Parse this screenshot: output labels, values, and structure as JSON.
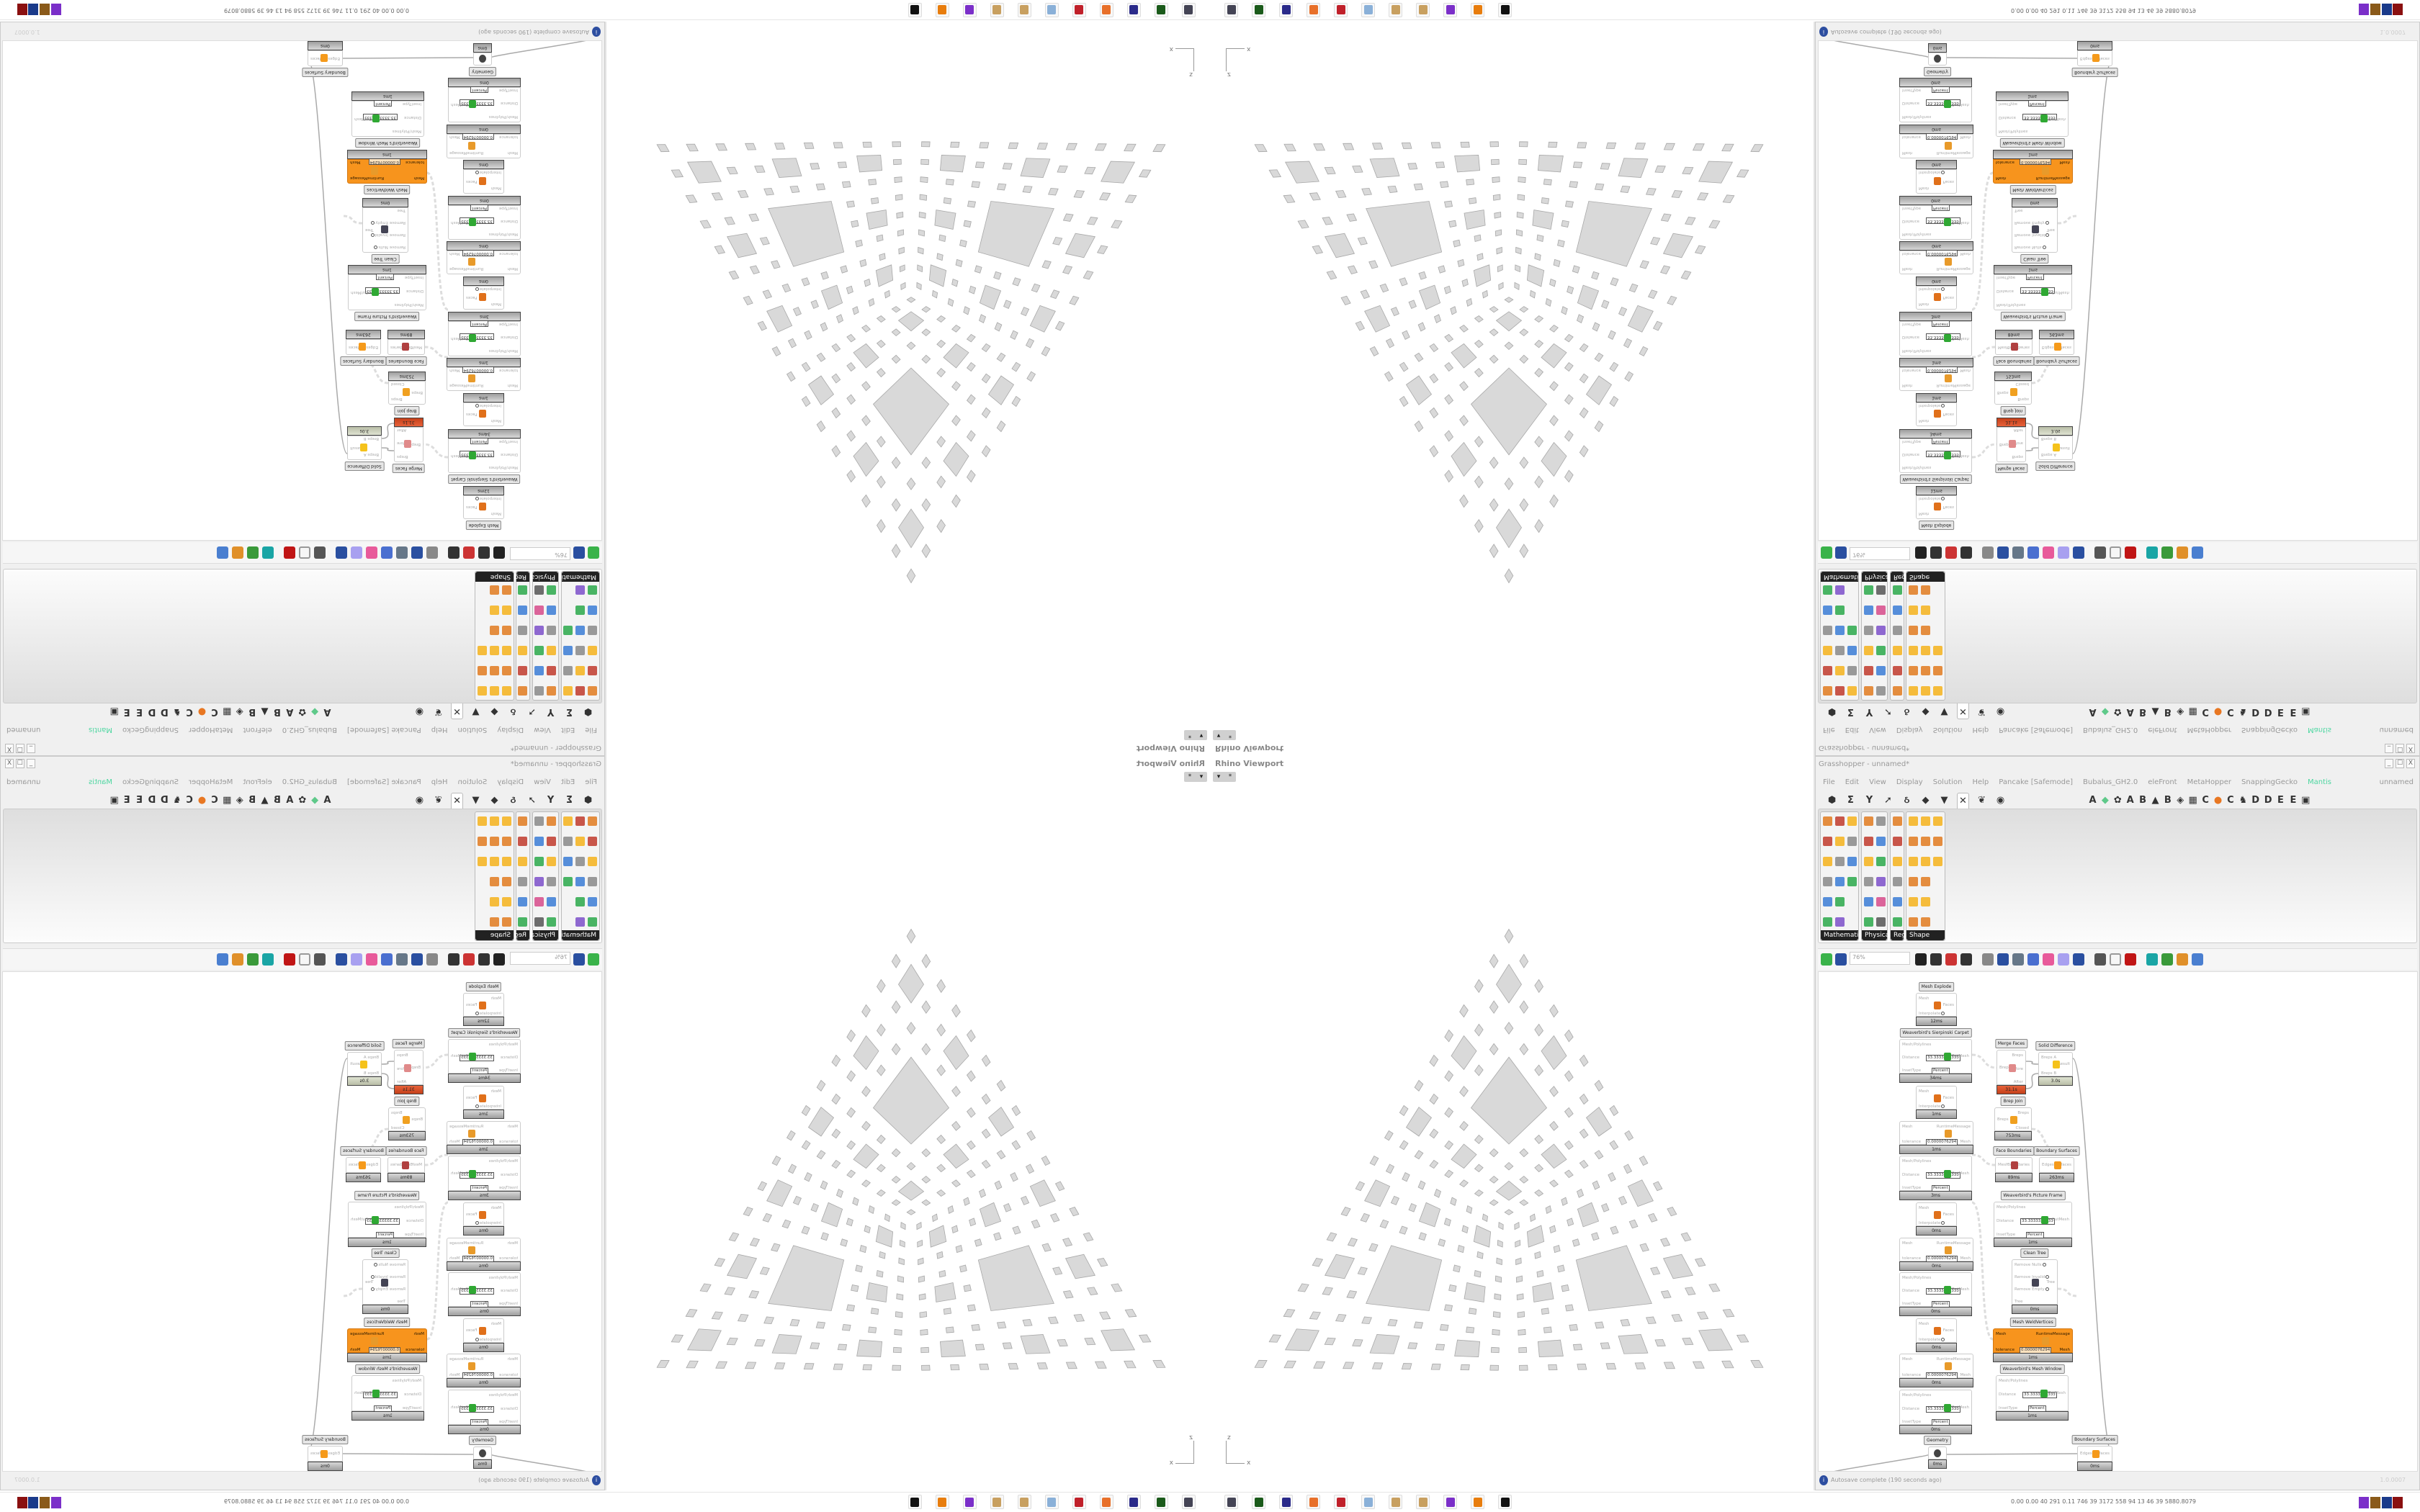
{
  "viewport": {
    "title": "Rhino Viewport",
    "menu_glyph": "▾",
    "pin_glyph": "*",
    "axes": {
      "z": "z",
      "x": "x"
    }
  },
  "gh": {
    "title": "Grasshopper - unnamed*",
    "window_buttons": [
      "_",
      "☐",
      "X"
    ],
    "menu": [
      "File",
      "Edit",
      "View",
      "Display",
      "Solution",
      "Help",
      "Pancake [Safemode]",
      "Bubalus_GH2.0",
      "eleFront",
      "MetaHopper",
      "SnappingGecko",
      "Mantis"
    ],
    "document_name": "unnamed",
    "tabs_left": [
      "⬢",
      "Σ",
      "Y",
      "➚",
      "ઠ",
      "◆",
      "▼",
      "✕",
      "❦",
      "◉"
    ],
    "selected_tab_index": 7,
    "tabs_right": [
      "A",
      "◆",
      "✿",
      "A",
      "B",
      "▲",
      "B",
      "◈",
      "▦",
      "C",
      "●",
      "C",
      "♞",
      "D",
      "D",
      "E",
      "E",
      "▣"
    ],
    "panels": [
      {
        "label": "Mathematical"
      },
      {
        "label": "Physical"
      },
      {
        "label": "Regi.."
      },
      {
        "label": "Shape"
      }
    ],
    "zoom": "76%",
    "canvas": {
      "components": [
        {
          "label": "Mesh Explode",
          "inputs": [
            {
              "name": "Mesh"
            },
            {
              "name": "Interpolate",
              "toggle": true
            }
          ],
          "outputs": [
            "Faces"
          ],
          "time": "12ms",
          "icon": "mesh-explode-icon"
        },
        {
          "label": "Weaverbird's Sierpinski Carpet",
          "inputs": [
            {
              "name": "Mesh/Polylines"
            },
            {
              "name": "Distance",
              "value": "33.3333333333"
            },
            {
              "name": "InsetType",
              "value": "Percent"
            }
          ],
          "outputs": [
            "OutMesh"
          ],
          "time": "34ms",
          "icon": "sierpinski-carpet-icon"
        },
        {
          "inputs": [
            {
              "name": "Mesh"
            },
            {
              "name": "Interpolate",
              "toggle": true
            }
          ],
          "outputs": [
            "Faces"
          ],
          "time": "1ms",
          "icon": "mesh-explode-icon"
        },
        {
          "inputs": [
            {
              "name": "Mesh"
            },
            {
              "name": "tolerance",
              "value": "0.0000076294"
            }
          ],
          "outputs": [
            "RuntimeMessage",
            "Mesh"
          ],
          "time": "1ms",
          "icon": "weld-vertices-icon"
        },
        {
          "inputs": [
            {
              "name": "Mesh/Polylines"
            },
            {
              "name": "Distance",
              "value": "33.3333333333"
            },
            {
              "name": "InsetType",
              "value": "Percent"
            }
          ],
          "outputs": [
            "OutMesh"
          ],
          "time": "3ms",
          "icon": "sierpinski-carpet-icon"
        },
        {
          "inputs": [
            {
              "name": "Mesh"
            },
            {
              "name": "Interpolate",
              "toggle": true
            }
          ],
          "outputs": [
            "Faces"
          ],
          "time": "0ms",
          "icon": "mesh-explode-icon"
        },
        {
          "inputs": [
            {
              "name": "Mesh"
            },
            {
              "name": "tolerance",
              "value": "0.0000076294"
            }
          ],
          "outputs": [
            "RuntimeMessage",
            "Mesh"
          ],
          "time": "0ms",
          "icon": "weld-vertices-icon"
        },
        {
          "inputs": [
            {
              "name": "Mesh/Polylines"
            },
            {
              "name": "Distance",
              "value": "33.3333333333"
            },
            {
              "name": "InsetType",
              "value": "Percent"
            }
          ],
          "outputs": [
            "OutMesh"
          ],
          "time": "0ms",
          "icon": "sierpinski-carpet-icon"
        },
        {
          "inputs": [
            {
              "name": "Mesh"
            },
            {
              "name": "Interpolate",
              "toggle": true
            }
          ],
          "outputs": [
            "Faces"
          ],
          "time": "0ms",
          "icon": "mesh-explode-icon"
        },
        {
          "inputs": [
            {
              "name": "Mesh"
            },
            {
              "name": "tolerance",
              "value": "0.0000076294"
            }
          ],
          "outputs": [
            "RuntimeMessage",
            "Mesh"
          ],
          "time": "0ms",
          "icon": "weld-vertices-icon"
        },
        {
          "inputs": [
            {
              "name": "Mesh/Polylines"
            },
            {
              "name": "Distance",
              "value": "33.3333333333"
            },
            {
              "name": "InsetType",
              "value": "Percent"
            }
          ],
          "outputs": [
            "OutMesh"
          ],
          "time": "0ms",
          "icon": "sierpinski-carpet-icon"
        },
        {
          "label": "Geometry",
          "inputs": [],
          "outputs": [],
          "time": "0ms",
          "icon": "geometry-param-icon"
        },
        {
          "label": "Merge Faces",
          "inputs": [
            {
              "name": "Brep"
            }
          ],
          "outputs": [
            "Breps",
            "Before",
            "After"
          ],
          "time": "31.1s",
          "state": "error",
          "icon": "merge-faces-icon"
        },
        {
          "label": "Solid Difference",
          "inputs": [
            {
              "name": "Breps A"
            },
            {
              "name": "Breps B"
            }
          ],
          "outputs": [
            "Result"
          ],
          "time": "3.0s",
          "state": "warning",
          "icon": "solid-difference-icon"
        },
        {
          "label": "Brep Join",
          "inputs": [
            {
              "name": "Breps"
            }
          ],
          "outputs": [
            "Breps",
            "Closed"
          ],
          "time": "753ms",
          "icon": "brep-join-icon"
        },
        {
          "label": "Face Boundaries",
          "inputs": [
            {
              "name": "Mesh"
            }
          ],
          "outputs": [
            "Boundaries"
          ],
          "time": "89ms",
          "icon": "face-boundaries-icon"
        },
        {
          "label": "Boundary Surfaces",
          "inputs": [
            {
              "name": "Edges"
            }
          ],
          "outputs": [
            "Surfaces"
          ],
          "time": "263ms",
          "icon": "boundary-surfaces-icon"
        },
        {
          "label": "Weaverbird's Picture Frame",
          "inputs": [
            {
              "name": "Mesh/Polylines"
            },
            {
              "name": "Distance",
              "value": "33.3333333333"
            },
            {
              "name": "InsetType",
              "value": "Percent"
            }
          ],
          "outputs": [
            "OutMesh"
          ],
          "time": "1ms",
          "icon": "picture-frame-icon"
        },
        {
          "label": "Clean Tree",
          "inputs": [
            {
              "name": "Remove Nulls",
              "toggle": true
            },
            {
              "name": "Remove Invalid",
              "toggle": true
            },
            {
              "name": "Remove Empty",
              "toggle": true
            },
            {
              "name": "Tree"
            }
          ],
          "outputs": [
            "Tree"
          ],
          "time": "0ms",
          "icon": "clean-tree-icon"
        },
        {
          "label": "Mesh WeldVertices",
          "inputs": [
            {
              "name": "Mesh"
            },
            {
              "name": "tolerance",
              "value": "0.0000076294"
            }
          ],
          "outputs": [
            "RuntimeMessage",
            "Mesh"
          ],
          "time": "1ms",
          "state": "selected",
          "icon": "weld-vertices-icon"
        },
        {
          "label": "Weaverbird's Mesh Window",
          "inputs": [
            {
              "name": "Mesh/Polylines"
            },
            {
              "name": "Distance",
              "value": "33.3333333333"
            },
            {
              "name": "InsetType",
              "value": "Percent"
            }
          ],
          "outputs": [
            "OutMesh"
          ],
          "time": "1ms",
          "icon": "mesh-window-icon"
        },
        {
          "label": "Boundary Surfaces",
          "inputs": [
            {
              "name": "Edges"
            }
          ],
          "outputs": [
            "Surfaces"
          ],
          "time": "0ms",
          "icon": "boundary-surfaces-icon"
        }
      ]
    },
    "status": {
      "message": "Autosave complete (190 seconds ago)",
      "info_glyph": "i",
      "version": "1.0.0007"
    }
  },
  "taskbar": {
    "apps": [
      "monitor-icon",
      "terminal-icon",
      "floppy-icon",
      "firefox-icon",
      "red-app-icon",
      "calculator-icon",
      "paint-icon",
      "paint-icon",
      "purple-app-icon",
      "blender-icon",
      "wolf-icon"
    ],
    "stats": "0.00 0.00  40  291  0.11  746  39  3172 558  94  13  46  39  5880.8079"
  },
  "colors": {
    "accent_orange": "#f7941d",
    "error_red": "#d4502a",
    "mantis_green": "#4cd6a0",
    "mesh_fill": "#d9d9d9"
  }
}
